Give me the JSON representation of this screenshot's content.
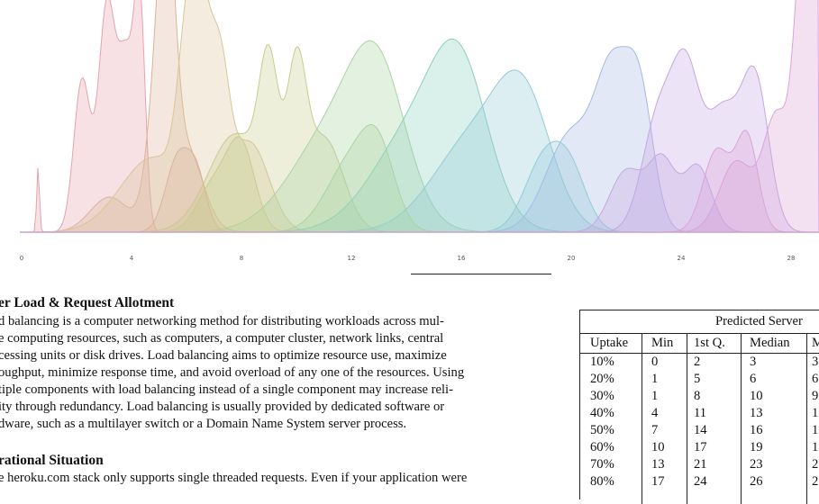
{
  "chart_data": {
    "type": "area",
    "title": "",
    "xlabel": "",
    "ylabel": "",
    "xlim": [
      0,
      29
    ],
    "x_ticks": [
      "0",
      "4",
      "8",
      "12",
      "16",
      "20",
      "24",
      "28"
    ],
    "colors": {
      "c1": "#e5a3ad",
      "c2": "#dbb39a",
      "c3": "#d9c59a",
      "c4": "#c8cc8e",
      "c5": "#a9d4a1",
      "c6": "#8dcfbf",
      "c7": "#92cbd8",
      "c8": "#a7b8e6",
      "c9": "#c3a8e2",
      "c10": "#dba3d8"
    },
    "series": [
      {
        "color": "c1",
        "peaks": [
          [
            0.6,
            0.05,
            0.28
          ],
          [
            2.2,
            0.3,
            0.65
          ],
          [
            3.1,
            0.3,
            0.95
          ],
          [
            3.8,
            0.3,
            0.72
          ],
          [
            4.3,
            0.2,
            0.9
          ]
        ]
      },
      {
        "color": "c2",
        "peaks": [
          [
            3.2,
            0.7,
            0.15
          ],
          [
            5.0,
            0.4,
            0.6
          ],
          [
            5.3,
            0.3,
            0.8
          ],
          [
            6.0,
            0.6,
            0.35
          ]
        ]
      },
      {
        "color": "c3",
        "peaks": [
          [
            4.8,
            1.2,
            0.32
          ],
          [
            6.0,
            0.35,
            0.57
          ],
          [
            6.5,
            0.35,
            0.75
          ],
          [
            7.2,
            0.35,
            0.6
          ],
          [
            8.3,
            0.7,
            0.38
          ]
        ]
      },
      {
        "color": "c4",
        "peaks": [
          [
            7.8,
            1.0,
            0.42
          ],
          [
            9.0,
            0.35,
            0.58
          ],
          [
            10.0,
            0.35,
            0.6
          ],
          [
            11.0,
            0.7,
            0.4
          ]
        ]
      },
      {
        "color": "c5",
        "peaks": [
          [
            11.5,
            1.6,
            0.45
          ],
          [
            13.0,
            1.0,
            0.5
          ]
        ]
      },
      {
        "color": "c6",
        "peaks": [
          [
            14.5,
            1.6,
            0.46
          ],
          [
            16.0,
            1.0,
            0.5
          ]
        ]
      },
      {
        "color": "c7",
        "peaks": [
          [
            16.5,
            1.5,
            0.4
          ],
          [
            18.3,
            1.0,
            0.47
          ]
        ]
      },
      {
        "color": "c8",
        "peaks": [
          [
            20.0,
            0.9,
            0.42
          ],
          [
            21.5,
            0.6,
            0.6
          ],
          [
            22.5,
            0.5,
            0.55
          ]
        ]
      },
      {
        "color": "c9",
        "peaks": [
          [
            23.2,
            0.6,
            0.5
          ],
          [
            24.2,
            0.5,
            0.6
          ],
          [
            25.5,
            0.6,
            0.5
          ],
          [
            26.7,
            0.5,
            0.63
          ]
        ]
      },
      {
        "color": "c10",
        "peaks": [
          [
            26.0,
            0.6,
            0.3
          ],
          [
            27.5,
            0.5,
            0.5
          ],
          [
            28.4,
            0.3,
            1.0
          ],
          [
            28.9,
            0.3,
            0.9
          ]
        ]
      }
    ],
    "front_series": [
      {
        "color": "c2",
        "peaks": [
          [
            5.7,
            0.45,
            0.32
          ],
          [
            6.4,
            0.35,
            0.2
          ]
        ]
      },
      {
        "color": "c4",
        "peaks": [
          [
            7.0,
            0.6,
            0.2
          ],
          [
            8.0,
            0.5,
            0.35
          ]
        ]
      },
      {
        "color": "c5",
        "peaks": [
          [
            12.0,
            0.9,
            0.3
          ],
          [
            13.0,
            0.6,
            0.27
          ]
        ]
      },
      {
        "color": "c7",
        "peaks": [
          [
            19.0,
            0.7,
            0.3
          ],
          [
            20.0,
            0.6,
            0.22
          ]
        ]
      },
      {
        "color": "c9",
        "peaks": [
          [
            22.0,
            0.6,
            0.26
          ],
          [
            23.3,
            0.5,
            0.3
          ],
          [
            24.6,
            0.5,
            0.28
          ]
        ]
      },
      {
        "color": "c10",
        "peaks": [
          [
            25.3,
            0.5,
            0.35
          ],
          [
            26.4,
            0.4,
            0.4
          ]
        ]
      }
    ]
  },
  "section1": {
    "heading": "er Load & Request Allotment",
    "lines": [
      "d balancing is a computer networking method for distributing workloads across mul-",
      "e computing resources, such as computers, a computer cluster, network links, central",
      "cessing units or disk drives.  Load balancing aims to optimize resource use, maximize",
      "oughput, minimize response time, and avoid overload of any one of the resources.  Using",
      "tiple components with load balancing instead of a single component may increase reli-",
      "ity through redundancy.  Load balancing is usually provided by dedicated software or",
      "dware, such as a multilayer switch or a Domain Name System server process."
    ]
  },
  "section2": {
    "heading": "rational Situation",
    "lines": [
      "e heroku.com stack only supports single threaded requests.  Even if your application were"
    ]
  },
  "table": {
    "caption": "Predicted Server",
    "headers": [
      "Uptake",
      "Min",
      "1st Q.",
      "Median",
      "M"
    ],
    "rows": [
      [
        "10%",
        "0",
        "2",
        "3",
        "3"
      ],
      [
        "20%",
        "1",
        "5",
        "6",
        "6"
      ],
      [
        "30%",
        "1",
        "8",
        "10",
        "9"
      ],
      [
        "40%",
        "4",
        "11",
        "13",
        "1"
      ],
      [
        "50%",
        "7",
        "14",
        "16",
        "1"
      ],
      [
        "60%",
        "10",
        "17",
        "19",
        "1"
      ],
      [
        "70%",
        "13",
        "21",
        "23",
        "2"
      ],
      [
        "80%",
        "17",
        "24",
        "26",
        "2"
      ]
    ]
  }
}
